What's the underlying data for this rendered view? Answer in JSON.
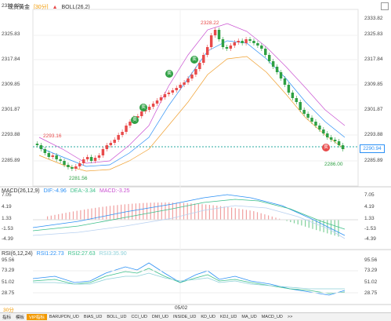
{
  "header": {
    "symbol": "现货黄金",
    "period": "[30分]",
    "indicator_icon": "up-arrow-icon",
    "indicator": "BOLL(26,2)"
  },
  "price_axis": [
    "2333.82",
    "2325.83",
    "2317.84",
    "2309.85",
    "2301.87",
    "2293.88",
    "2285.89"
  ],
  "price_tags": {
    "high": "2328.22",
    "left": "2293.16",
    "low1": "2281.56",
    "low2": "2286.00",
    "current": "2290.94"
  },
  "buy_label": "卖",
  "sell_label": "卖",
  "buy_marker": "卖",
  "macd": {
    "title": "MACD(26,12,9)",
    "dif": "DIF:-4.96",
    "dea": "DEA:-3.34",
    "macd": "MACD:-3.25",
    "axis": [
      "7.05",
      "4.19",
      "1.33",
      "-1.53",
      "-4.39"
    ]
  },
  "rsi": {
    "title": "RSI(6,12,24)",
    "rsi1": "RSI1:22.73",
    "rsi2": "RSI2:27.63",
    "rsi3": "RSI3:35.90",
    "axis": [
      "95.56",
      "73.29",
      "51.02",
      "28.75"
    ]
  },
  "time_label": "05/02",
  "bottom_prefix": "30分",
  "tabs": [
    "指标",
    "模板",
    "VIP指标",
    "BARUPDN_UD",
    "BIAS_UD",
    "BOLL_UD",
    "CCI_UD",
    "DMI_UD",
    "INSIDE_UD",
    "KD_UD",
    "KDJ_UD",
    "MA_UD",
    "MACD_UD",
    ">>"
  ],
  "colors": {
    "up": "#e84a4a",
    "down": "#2ea043",
    "boll_mid": "#2b90f5"
  }
}
